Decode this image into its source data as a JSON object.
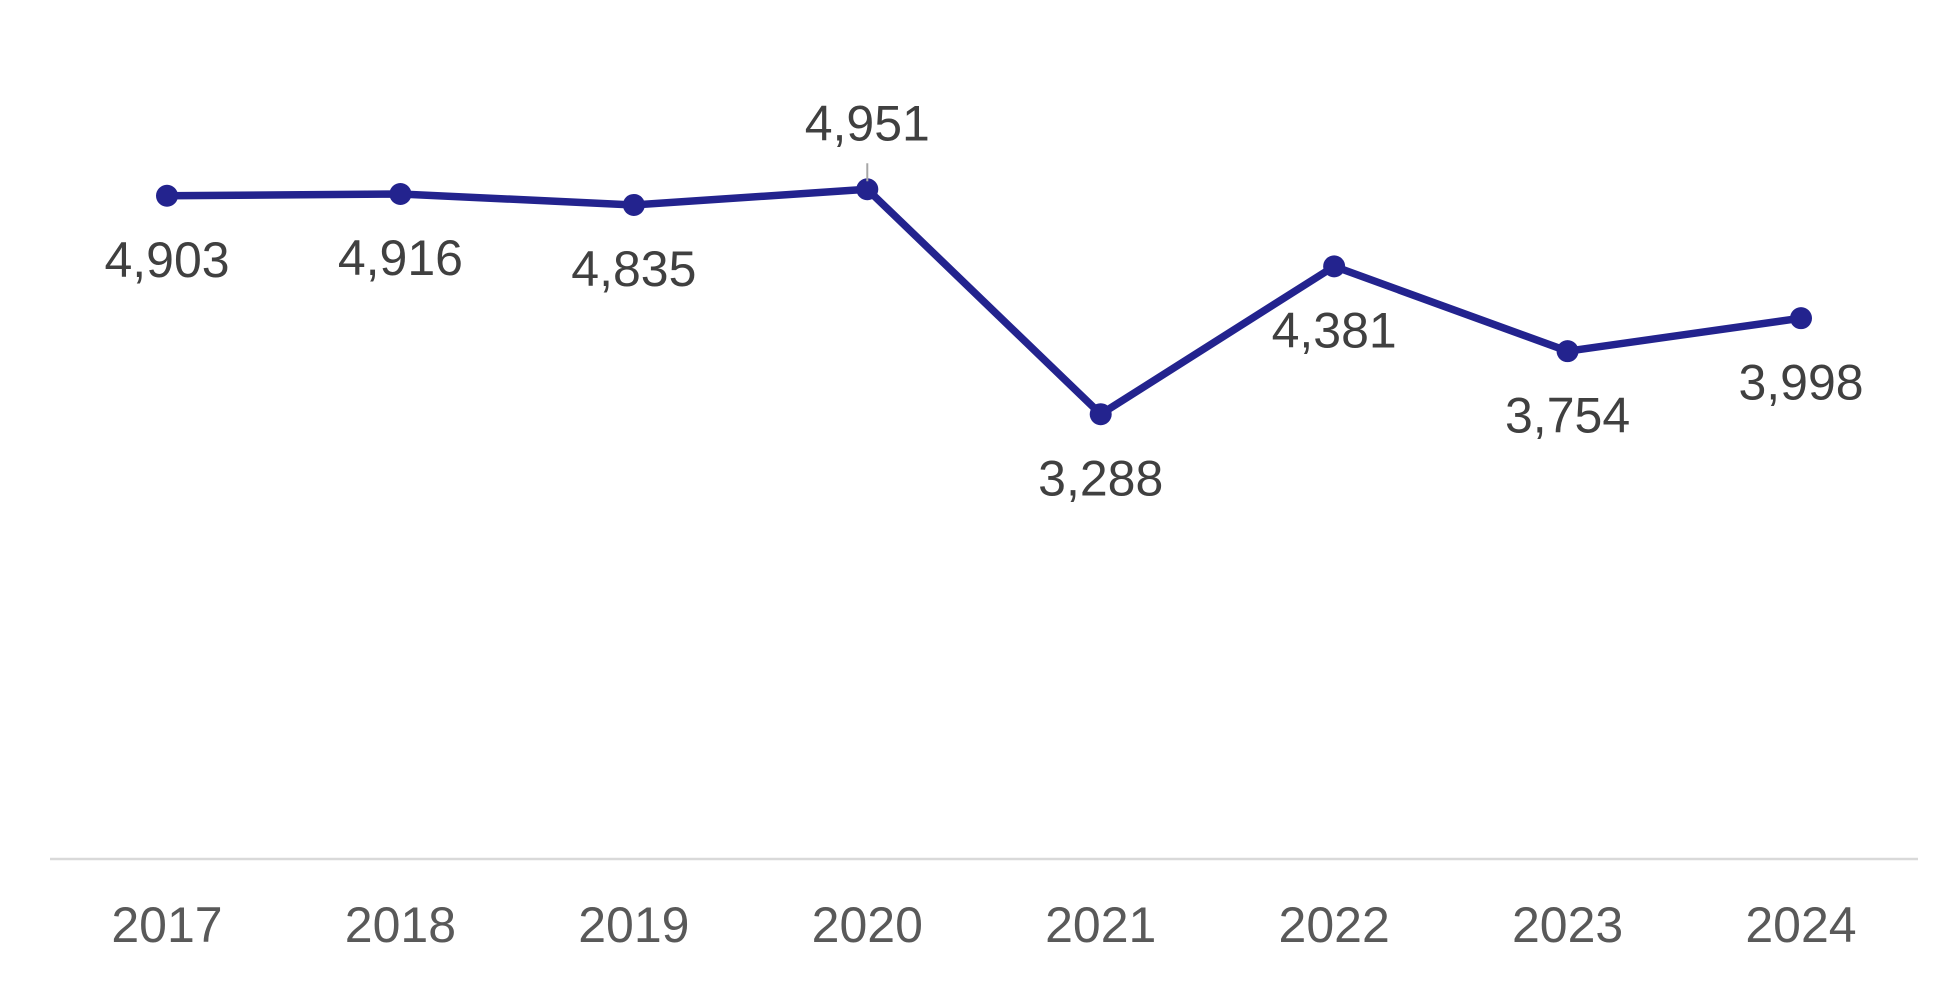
{
  "chart_data": {
    "type": "line",
    "categories": [
      "2017",
      "2018",
      "2019",
      "2020",
      "2021",
      "2022",
      "2023",
      "2024"
    ],
    "series": [
      {
        "color": "#23238e",
        "values": [
          4903,
          4916,
          4835,
          4951,
          3288,
          4381,
          3754,
          3998
        ],
        "value_labels": [
          "4,903",
          "4,916",
          "4,835",
          "4,951",
          "3,288",
          "4,381",
          "3,754",
          "3,998"
        ]
      }
    ],
    "ylim": [
      0,
      5500
    ]
  }
}
